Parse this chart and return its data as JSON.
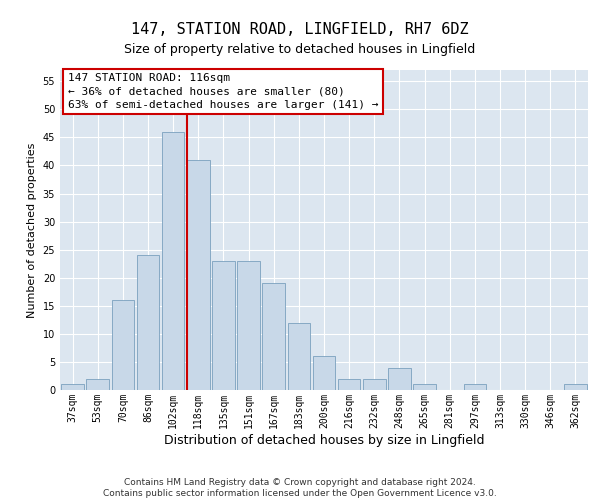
{
  "title": "147, STATION ROAD, LINGFIELD, RH7 6DZ",
  "subtitle": "Size of property relative to detached houses in Lingfield",
  "xlabel": "Distribution of detached houses by size in Lingfield",
  "ylabel": "Number of detached properties",
  "bar_color": "#c8d8e8",
  "bar_edge_color": "#7aa0be",
  "background_color": "#dce6f0",
  "grid_color": "#ffffff",
  "categories": [
    "37sqm",
    "53sqm",
    "70sqm",
    "86sqm",
    "102sqm",
    "118sqm",
    "135sqm",
    "151sqm",
    "167sqm",
    "183sqm",
    "200sqm",
    "216sqm",
    "232sqm",
    "248sqm",
    "265sqm",
    "281sqm",
    "297sqm",
    "313sqm",
    "330sqm",
    "346sqm",
    "362sqm"
  ],
  "values": [
    1,
    2,
    16,
    24,
    46,
    41,
    23,
    23,
    19,
    12,
    6,
    2,
    2,
    4,
    1,
    0,
    1,
    0,
    0,
    0,
    1
  ],
  "vline_x": 4.55,
  "vline_color": "#cc0000",
  "annotation_text": "147 STATION ROAD: 116sqm\n← 36% of detached houses are smaller (80)\n63% of semi-detached houses are larger (141) →",
  "annotation_box_color": "#ffffff",
  "annotation_box_edge_color": "#cc0000",
  "ylim": [
    0,
    57
  ],
  "yticks": [
    0,
    5,
    10,
    15,
    20,
    25,
    30,
    35,
    40,
    45,
    50,
    55
  ],
  "footnote": "Contains HM Land Registry data © Crown copyright and database right 2024.\nContains public sector information licensed under the Open Government Licence v3.0.",
  "title_fontsize": 11,
  "subtitle_fontsize": 9,
  "xlabel_fontsize": 9,
  "ylabel_fontsize": 8,
  "tick_fontsize": 7,
  "annotation_fontsize": 8,
  "footnote_fontsize": 6.5
}
